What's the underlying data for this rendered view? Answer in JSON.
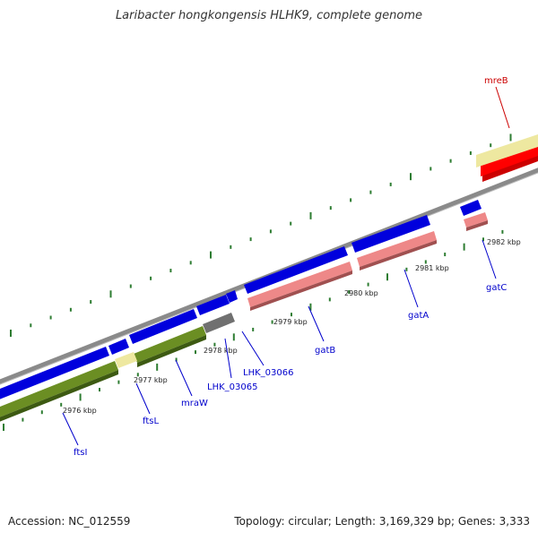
{
  "title": "Laribacter hongkongensis HLHK9, complete genome",
  "footer": {
    "accession": "Accession: NC_012559",
    "summary": "Topology: circular; Length: 3,169,329 bp; Genes: 3,333"
  },
  "colors": {
    "gene_blue": "#0000dd",
    "gene_label_blue": "#0000cc",
    "mreB_red": "#ff0000",
    "mreB_label_red": "#cc0000",
    "pink_feature": "#ee8888",
    "yellow_feature": "#eee8a0",
    "green_feature": "#6b8e23",
    "gray_feature": "#707070",
    "backbone_gray": "#8a8a8a",
    "tick_green": "#2e7d32"
  },
  "ruler_labels": [
    "2976 kbp",
    "2977 kbp",
    "2978 kbp",
    "2979 kbp",
    "2980 kbp",
    "2981 kbp",
    "2982 kbp"
  ],
  "gene_labels": [
    "ftsI",
    "ftsL",
    "mraW",
    "LHK_03065",
    "LHK_03066",
    "gatB",
    "gatA",
    "gatC",
    "mreB"
  ]
}
